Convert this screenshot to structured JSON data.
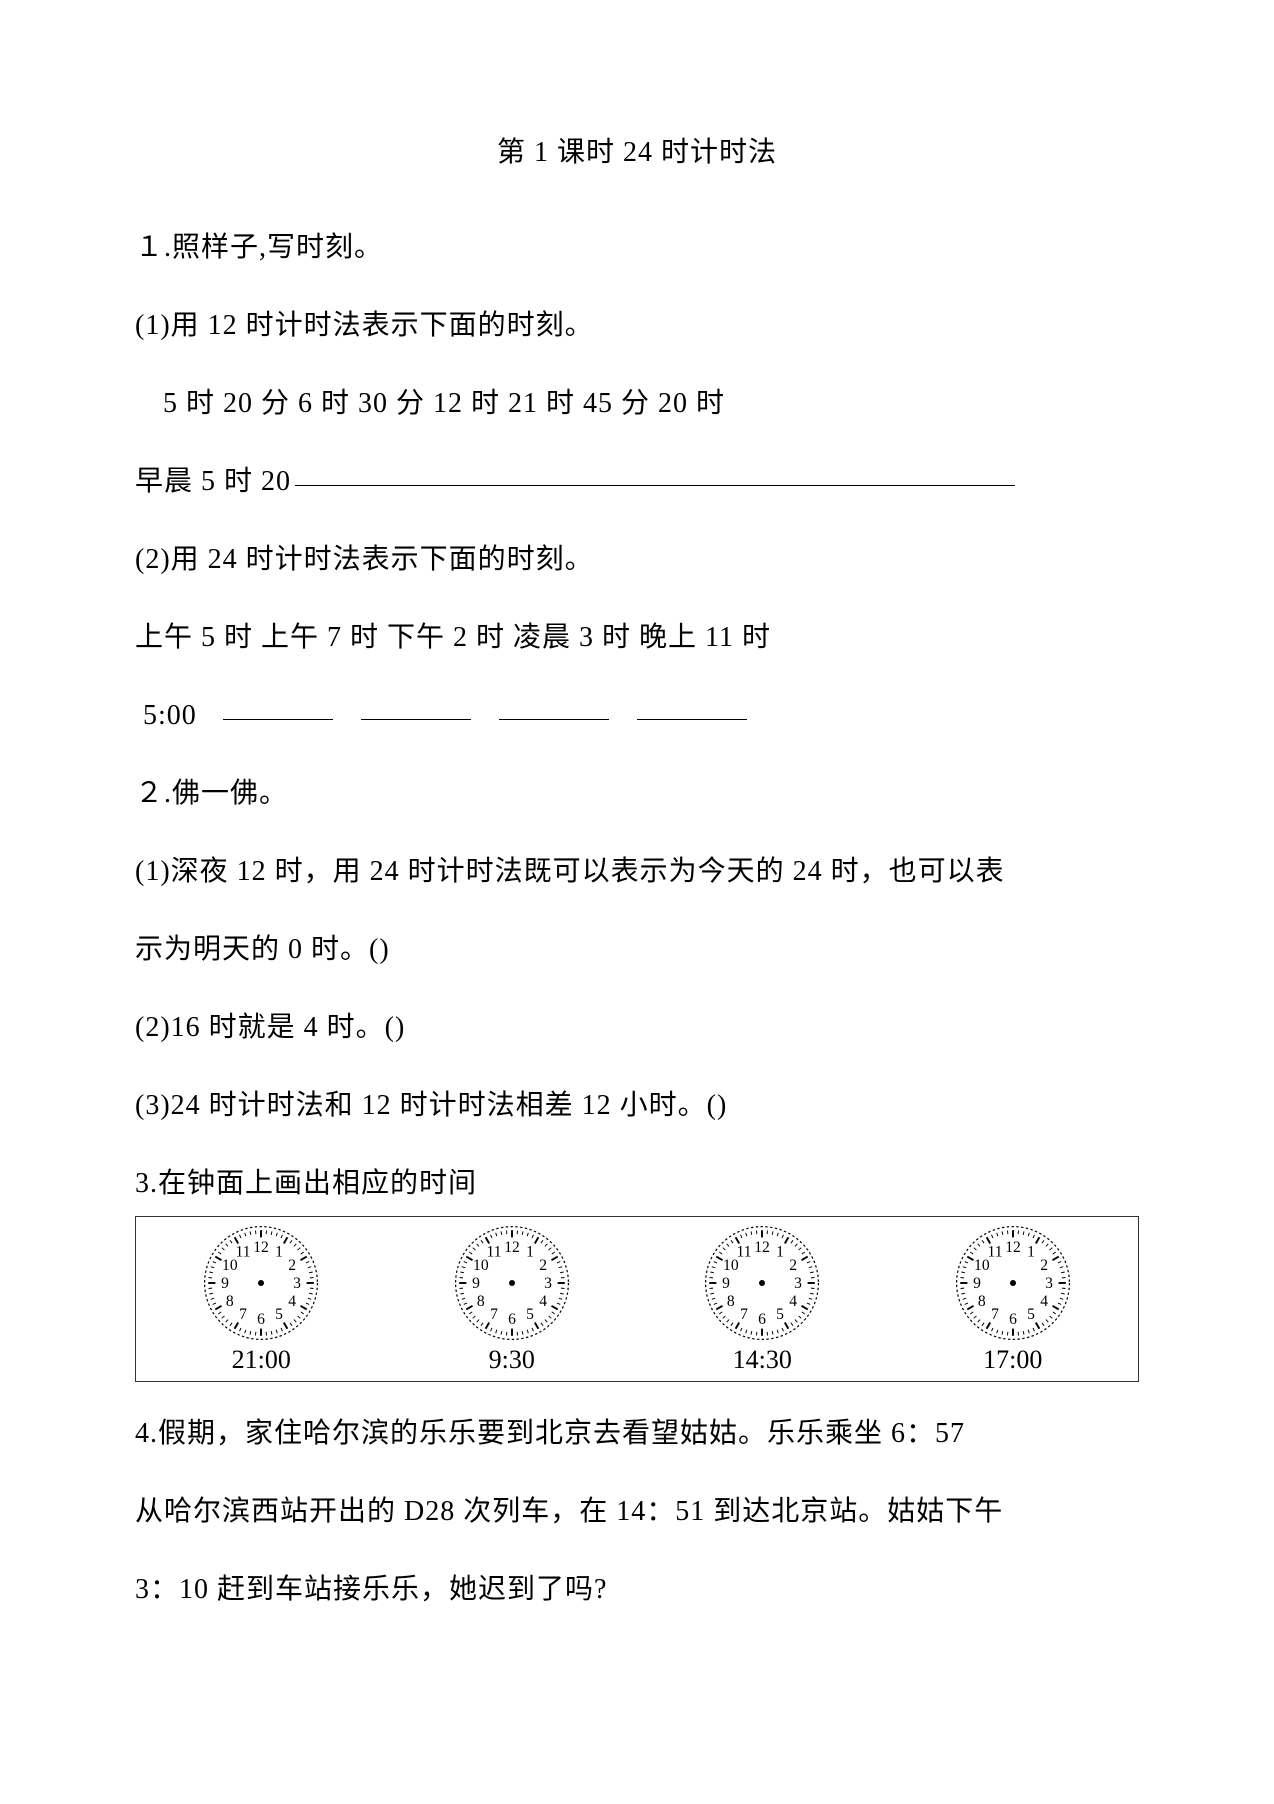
{
  "title": "第 1 课时 24 时计时法",
  "q1": {
    "heading": "１.照样子,写时刻。",
    "p1": "(1)用 12 时计时法表示下面的时刻。",
    "p1_list": "5 时 20 分 6 时 30 分 12 时 21 时 45 分 20 时",
    "p1_example_prefix": "早晨 5 时 20",
    "p2": "(2)用 24 时计时法表示下面的时刻。",
    "p2_list": "上午 5 时 上午 7 时 下午 2 时 凌晨 3 时 晚上 11 时",
    "p2_example_prefix": "5:00"
  },
  "q2": {
    "heading": "２.佛一佛。",
    "s1a": "(1)深夜 12 时，用 24 时计时法既可以表示为今天的 24 时，也可以表",
    "s1b": "示为明天的 0 时。()",
    "s2": "(2)16 时就是 4 时。()",
    "s3": "(3)24 时计时法和 12 时计时法相差 12 小时。()"
  },
  "q3": {
    "heading": "3.在钟面上画出相应的时间",
    "clocks": [
      {
        "label": "21:00"
      },
      {
        "label": "9:30"
      },
      {
        "label": "14:30"
      },
      {
        "label": "17:00"
      }
    ],
    "clock_style": {
      "face_stroke": "#000000",
      "tick_stroke": "#000000",
      "number_fill": "#000000",
      "center_fill": "#000000",
      "number_fontsize": 13
    }
  },
  "q4": {
    "line1": "4.假期，家住哈尔滨的乐乐要到北京去看望姑姑。乐乐乘坐 6：57",
    "line2": "从哈尔滨西站开出的 D28 次列车，在 14：51 到达北京站。姑姑下午",
    "line3": "3：10 赶到车站接乐乐，她迟到了吗?"
  }
}
